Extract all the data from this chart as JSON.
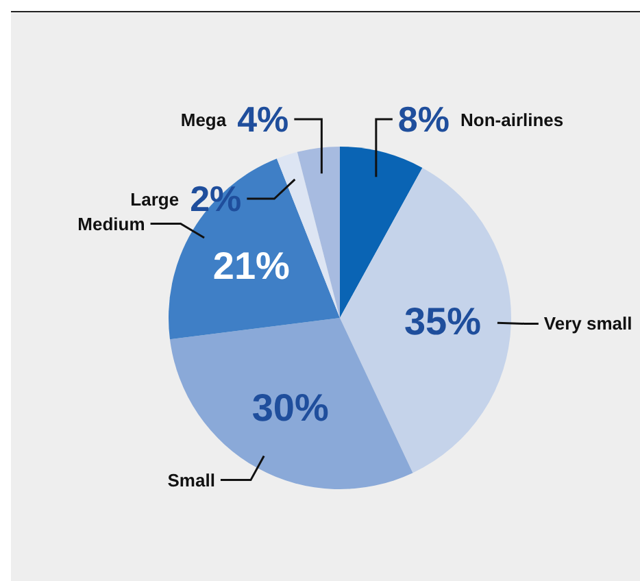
{
  "chart_data": {
    "type": "pie",
    "categories": [
      "Non-airlines",
      "Very small",
      "Small",
      "Medium",
      "Large",
      "Mega"
    ],
    "values": [
      8,
      35,
      30,
      21,
      2,
      4
    ],
    "colors": [
      "#0a64b4",
      "#c5d3ea",
      "#8aa9d8",
      "#3f7fc6",
      "#dde5f3",
      "#a7bbe0"
    ],
    "value_labels": [
      "8%",
      "35%",
      "30%",
      "21%",
      "2%",
      "4%"
    ],
    "legend": false
  }
}
